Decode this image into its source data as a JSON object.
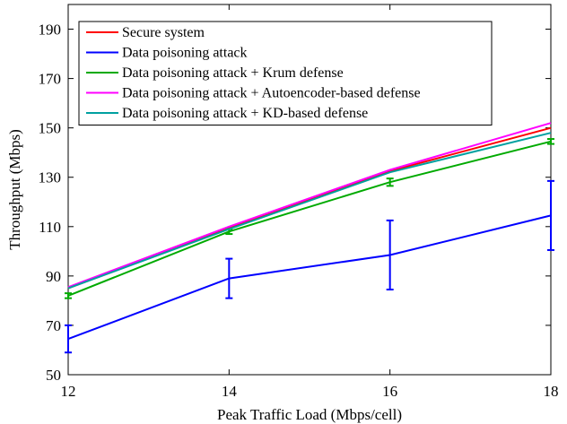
{
  "chart_data": {
    "type": "line",
    "title": "",
    "xlabel": "Peak Traffic Load (Mbps/cell)",
    "ylabel": "Throughput (Mbps)",
    "xlim": [
      12,
      18
    ],
    "ylim": [
      50,
      200
    ],
    "x": [
      12,
      14,
      16,
      18
    ],
    "xticks": [
      "12",
      "14",
      "16",
      "18"
    ],
    "yticks": [
      "50",
      "70",
      "90",
      "110",
      "130",
      "150",
      "170",
      "190"
    ],
    "grid": false,
    "legend_position": "top-left",
    "series": [
      {
        "name": "Secure system",
        "color": "#ff0000",
        "values": [
          85,
          109.5,
          132.5,
          150
        ],
        "err": [
          0,
          0,
          0,
          0
        ]
      },
      {
        "name": "Data poisoning attack",
        "color": "#0000ff",
        "values": [
          64.5,
          89,
          98.5,
          114.5
        ],
        "err": [
          5.5,
          8,
          14,
          14
        ]
      },
      {
        "name": "Data poisoning attack + Krum defense",
        "color": "#00aa00",
        "values": [
          82,
          108,
          128,
          144.5
        ],
        "err": [
          1,
          1,
          1.5,
          1
        ]
      },
      {
        "name": "Data poisoning attack + Autoencoder-based defense",
        "color": "#ff00ff",
        "values": [
          85.5,
          110,
          133,
          152
        ],
        "err": [
          0,
          0,
          0,
          0
        ]
      },
      {
        "name": "Data poisoning attack + KD-based defense",
        "color": "#00a0a0",
        "values": [
          85,
          109,
          132,
          148
        ],
        "err": [
          0,
          0,
          0,
          0
        ]
      }
    ]
  }
}
